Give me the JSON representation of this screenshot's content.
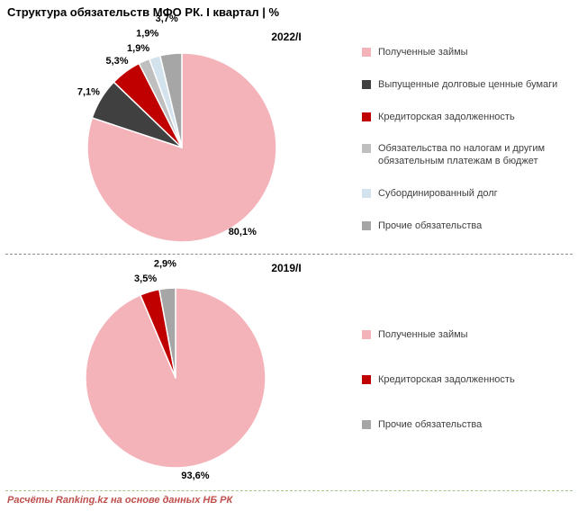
{
  "title": "Структура обязательств МФО РК. I квартал | %",
  "footer": "Расчёты Ranking.kz на основе данных НБ РК",
  "chart_data": [
    {
      "type": "pie",
      "title": "2022/I",
      "legend_position": "right",
      "direction": "clockwise",
      "start_angle_deg": 0,
      "labels": [
        "Полученные займы",
        "Выпущенные долговые ценные бумаги",
        "Кредиторская задолженность",
        "Обязательства по налогам и другим обязательным платежам в бюджет",
        "Субординированный долг",
        "Прочие обязательства"
      ],
      "values": [
        80.1,
        7.1,
        5.3,
        1.9,
        1.9,
        3.7
      ],
      "value_labels": [
        "80,1%",
        "7,1%",
        "5,3%",
        "1,9%",
        "1,9%",
        "3,7%"
      ],
      "colors": [
        "#F4B3B9",
        "#404040",
        "#C00000",
        "#BFBFBF",
        "#D3E3EE",
        "#A6A6A6"
      ]
    },
    {
      "type": "pie",
      "title": "2019/I",
      "legend_position": "right",
      "direction": "clockwise",
      "start_angle_deg": 0,
      "labels": [
        "Полученные займы",
        "Кредиторская задолженность",
        "Прочие обязательства"
      ],
      "values": [
        93.6,
        3.5,
        2.9
      ],
      "value_labels": [
        "93,6%",
        "3,5%",
        "2,9%"
      ],
      "colors": [
        "#F4B3B9",
        "#C00000",
        "#A6A6A6"
      ]
    }
  ]
}
